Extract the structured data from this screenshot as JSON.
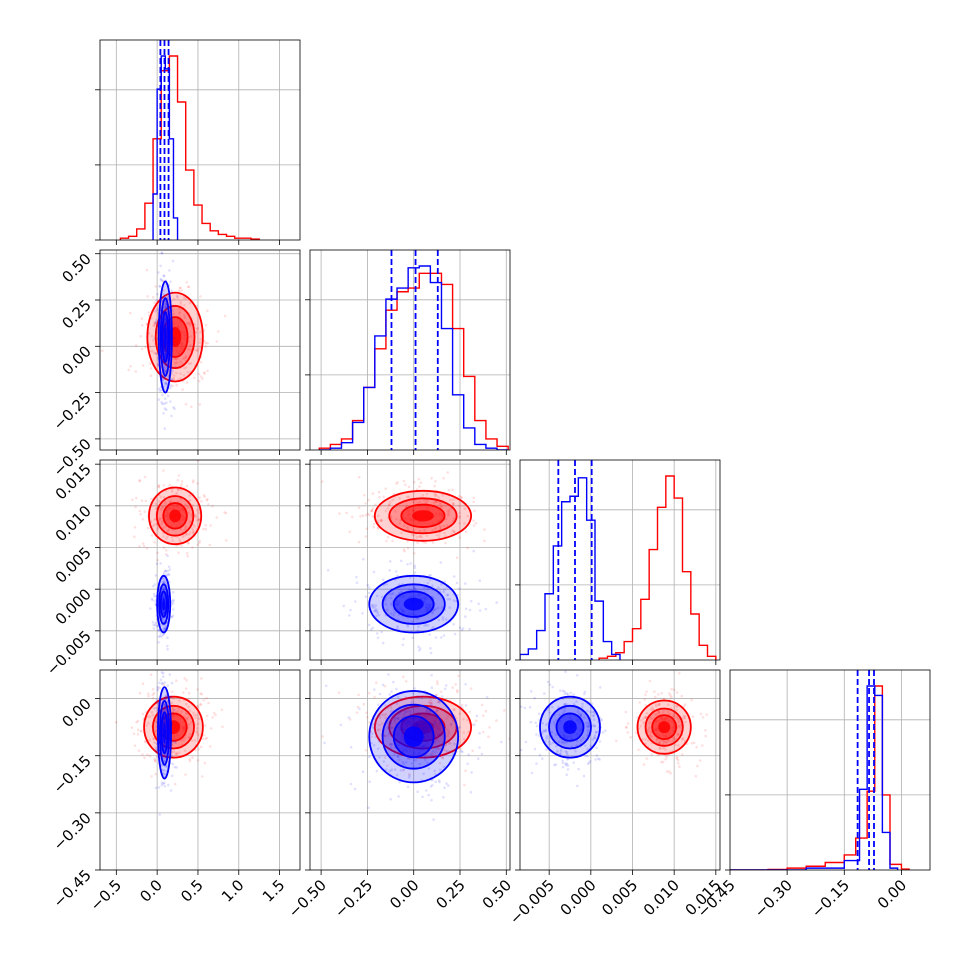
{
  "chart_data": {
    "type": "corner",
    "grid": true,
    "series": [
      {
        "color": "#ff0000",
        "name": ""
      },
      {
        "color": "#0000ff",
        "name": ""
      }
    ],
    "parameters": [
      {
        "range": [
          -0.7,
          1.75
        ],
        "ticks": [
          -0.5,
          0.0,
          0.5,
          1.0,
          1.5
        ],
        "tick_labels": [
          "−0.5",
          "0.0",
          "0.5",
          "1.0",
          "1.5"
        ]
      },
      {
        "range": [
          -0.56,
          0.52
        ],
        "ticks": [
          -0.5,
          -0.25,
          0.0,
          0.25,
          0.5
        ],
        "tick_labels": [
          "−0.50",
          "−0.25",
          "0.00",
          "0.25",
          "0.50"
        ]
      },
      {
        "range": [
          -0.0085,
          0.0155
        ],
        "ticks": [
          -0.005,
          0.0,
          0.005,
          0.01,
          0.015
        ],
        "tick_labels": [
          "−0.005",
          "0.000",
          "0.005",
          "0.010",
          "0.015"
        ]
      },
      {
        "range": [
          -0.45,
          0.075
        ],
        "ticks": [
          -0.45,
          -0.3,
          -0.15,
          0.0
        ],
        "tick_labels": [
          "−0.45",
          "−0.30",
          "−0.15",
          "0.00"
        ]
      }
    ],
    "histograms": [
      {
        "red_edges": [
          -0.45,
          -0.35,
          -0.25,
          -0.15,
          -0.05,
          0.05,
          0.15,
          0.25,
          0.35,
          0.45,
          0.55,
          0.65,
          0.75,
          0.85,
          0.95,
          1.05,
          1.15,
          1.25
        ],
        "red_counts": [
          0.01,
          0.02,
          0.06,
          0.2,
          0.55,
          0.92,
          1.0,
          0.75,
          0.38,
          0.19,
          0.09,
          0.05,
          0.03,
          0.02,
          0.01,
          0.01,
          0.005
        ],
        "blue_edges": [
          -0.05,
          0.0,
          0.05,
          0.1,
          0.15,
          0.2,
          0.25
        ],
        "blue_counts": [
          0.25,
          0.82,
          1.0,
          0.93,
          0.55,
          0.12
        ],
        "quantiles": [
          0.04,
          0.09,
          0.14
        ]
      },
      {
        "red_edges": [
          -0.51,
          -0.45,
          -0.39,
          -0.33,
          -0.27,
          -0.21,
          -0.15,
          -0.09,
          -0.03,
          0.03,
          0.09,
          0.15,
          0.21,
          0.27,
          0.33,
          0.39,
          0.45,
          0.51
        ],
        "red_counts": [
          0.01,
          0.03,
          0.06,
          0.16,
          0.34,
          0.55,
          0.76,
          0.86,
          0.88,
          0.96,
          0.96,
          0.9,
          0.66,
          0.4,
          0.16,
          0.06,
          0.02
        ],
        "blue_edges": [
          -0.51,
          -0.45,
          -0.39,
          -0.33,
          -0.27,
          -0.21,
          -0.15,
          -0.09,
          -0.03,
          0.03,
          0.09,
          0.15,
          0.21,
          0.27,
          0.33,
          0.39,
          0.45,
          0.51
        ],
        "blue_counts": [
          0.0,
          0.01,
          0.04,
          0.15,
          0.34,
          0.62,
          0.82,
          0.88,
          0.99,
          1.0,
          0.91,
          0.66,
          0.3,
          0.12,
          0.03,
          0.01,
          0.0
        ],
        "quantiles": [
          -0.12,
          0.01,
          0.13
        ]
      },
      {
        "red_edges": [
          0.001,
          0.002,
          0.003,
          0.004,
          0.005,
          0.006,
          0.007,
          0.008,
          0.009,
          0.01,
          0.011,
          0.012,
          0.013,
          0.014,
          0.015
        ],
        "red_counts": [
          0.01,
          0.02,
          0.04,
          0.1,
          0.17,
          0.33,
          0.6,
          0.83,
          1.0,
          0.88,
          0.48,
          0.25,
          0.08,
          0.02
        ],
        "blue_edges": [
          -0.0085,
          -0.0075,
          -0.0065,
          -0.0055,
          -0.0045,
          -0.0035,
          -0.0025,
          -0.0015,
          -0.0005,
          0.0005,
          0.0015,
          0.0025,
          0.0035
        ],
        "blue_counts": [
          0.03,
          0.06,
          0.16,
          0.36,
          0.62,
          0.86,
          0.89,
          0.99,
          0.76,
          0.32,
          0.1,
          0.03
        ],
        "quantiles": [
          -0.0039,
          -0.0019,
          0.0001
        ]
      },
      {
        "red_edges": [
          -0.45,
          -0.4,
          -0.35,
          -0.3,
          -0.25,
          -0.2,
          -0.15,
          -0.12,
          -0.09,
          -0.07,
          -0.05,
          -0.03,
          0.0,
          0.02
        ],
        "red_counts": [
          0.0,
          0.0,
          0.003,
          0.01,
          0.02,
          0.04,
          0.08,
          0.17,
          0.42,
          0.98,
          0.4,
          0.03,
          0.005
        ],
        "blue_edges": [
          -0.45,
          -0.35,
          -0.25,
          -0.15,
          -0.11,
          -0.09,
          -0.07,
          -0.05,
          -0.03,
          -0.01
        ],
        "blue_counts": [
          0.0,
          0.0,
          0.01,
          0.05,
          0.43,
          0.98,
          0.93,
          0.2,
          0.01
        ],
        "quantiles": [
          -0.115,
          -0.085,
          -0.072
        ]
      }
    ],
    "clouds": [
      {
        "p": [
          0,
          1
        ],
        "red": {
          "mean": [
            0.22,
            0.05
          ],
          "sd": [
            0.17,
            0.12
          ]
        },
        "blue": {
          "mean": [
            0.1,
            0.05
          ],
          "sd": [
            0.04,
            0.15
          ]
        }
      },
      {
        "p": [
          0,
          2
        ],
        "red": {
          "mean": [
            0.22,
            0.0088
          ],
          "sd": [
            0.16,
            0.0017
          ]
        },
        "blue": {
          "mean": [
            0.08,
            -0.0018
          ],
          "sd": [
            0.04,
            0.0017
          ]
        }
      },
      {
        "p": [
          0,
          3
        ],
        "red": {
          "mean": [
            0.2,
            -0.075
          ],
          "sd": [
            0.18,
            0.04
          ]
        },
        "blue": {
          "mean": [
            0.09,
            -0.09
          ],
          "sd": [
            0.04,
            0.06
          ]
        }
      },
      {
        "p": [
          1,
          2
        ],
        "red": {
          "mean": [
            0.05,
            0.0088
          ],
          "sd": [
            0.13,
            0.0015
          ]
        },
        "blue": {
          "mean": [
            0.0,
            -0.0018
          ],
          "sd": [
            0.12,
            0.0017
          ]
        }
      },
      {
        "p": [
          1,
          3
        ],
        "red": {
          "mean": [
            0.05,
            -0.075
          ],
          "sd": [
            0.13,
            0.04
          ]
        },
        "blue": {
          "mean": [
            0.0,
            -0.1
          ],
          "sd": [
            0.12,
            0.06
          ]
        }
      },
      {
        "p": [
          2,
          3
        ],
        "red": {
          "mean": [
            0.0088,
            -0.075
          ],
          "sd": [
            0.0016,
            0.035
          ]
        },
        "blue": {
          "mean": [
            -0.0025,
            -0.075
          ],
          "sd": [
            0.0018,
            0.04
          ]
        }
      }
    ]
  }
}
